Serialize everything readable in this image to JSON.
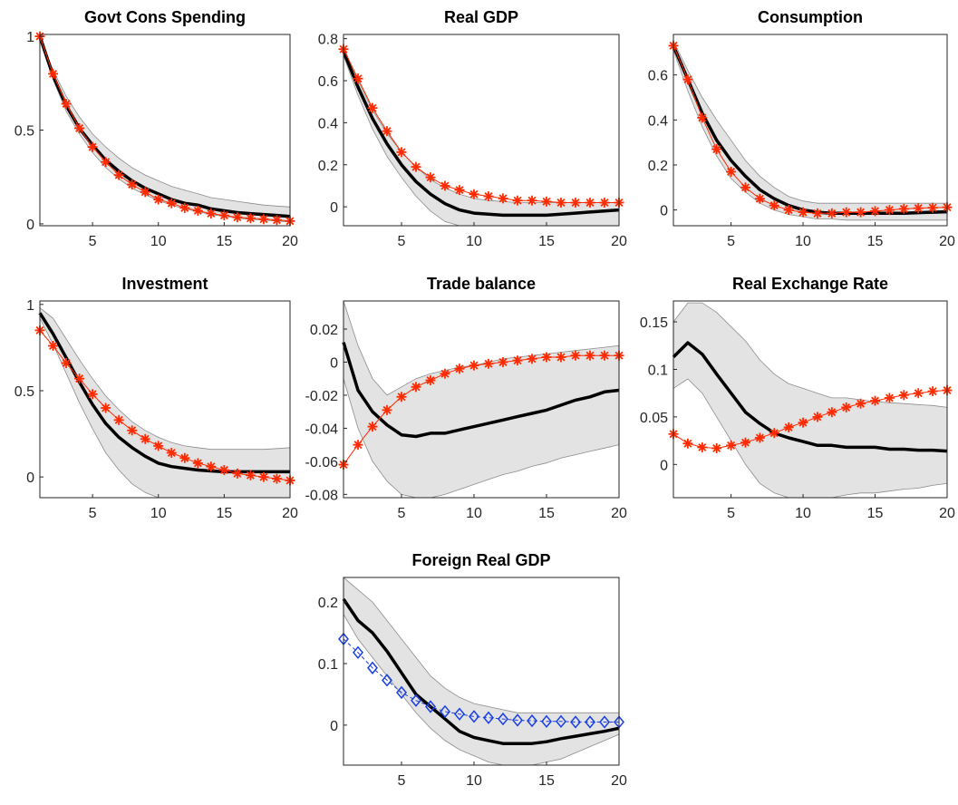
{
  "chart_data": [
    {
      "type": "line",
      "title": "Govt Cons Spending",
      "xlim": [
        1,
        20
      ],
      "ylim": [
        -0.01,
        1.01
      ],
      "xticks": [
        5,
        10,
        15,
        20
      ],
      "yticks": [
        0,
        0.5,
        1
      ],
      "ytick_labels": [
        "0",
        "0.5",
        "1"
      ],
      "x": [
        1,
        2,
        3,
        4,
        5,
        6,
        7,
        8,
        9,
        10,
        11,
        12,
        13,
        14,
        15,
        16,
        17,
        18,
        19,
        20
      ],
      "band_lower": [
        0.98,
        0.77,
        0.6,
        0.48,
        0.38,
        0.3,
        0.24,
        0.19,
        0.155,
        0.125,
        0.1,
        0.08,
        0.065,
        0.05,
        0.04,
        0.03,
        0.025,
        0.02,
        0.015,
        0.01
      ],
      "band_upper": [
        1.0,
        0.82,
        0.68,
        0.57,
        0.48,
        0.41,
        0.35,
        0.3,
        0.26,
        0.23,
        0.2,
        0.18,
        0.16,
        0.14,
        0.13,
        0.12,
        0.11,
        0.1,
        0.095,
        0.09
      ],
      "median": [
        1.0,
        0.79,
        0.63,
        0.51,
        0.42,
        0.34,
        0.28,
        0.23,
        0.19,
        0.16,
        0.13,
        0.11,
        0.1,
        0.08,
        0.07,
        0.06,
        0.055,
        0.05,
        0.045,
        0.04
      ],
      "markers": [
        1.0,
        0.8,
        0.64,
        0.51,
        0.41,
        0.33,
        0.26,
        0.21,
        0.17,
        0.13,
        0.11,
        0.085,
        0.07,
        0.055,
        0.045,
        0.035,
        0.03,
        0.025,
        0.02,
        0.015
      ],
      "marker_color": "#ff2a00"
    },
    {
      "type": "line",
      "title": "Real GDP",
      "xlim": [
        1,
        20
      ],
      "ylim": [
        -0.09,
        0.82
      ],
      "xticks": [
        5,
        10,
        15,
        20
      ],
      "yticks": [
        0,
        0.2,
        0.4,
        0.6,
        0.8
      ],
      "ytick_labels": [
        "0",
        "0.2",
        "0.4",
        "0.6",
        "0.8"
      ],
      "x": [
        1,
        2,
        3,
        4,
        5,
        6,
        7,
        8,
        9,
        10,
        11,
        12,
        13,
        14,
        15,
        16,
        17,
        18,
        19,
        20
      ],
      "band_lower": [
        0.72,
        0.53,
        0.37,
        0.24,
        0.14,
        0.05,
        -0.02,
        -0.07,
        -0.09,
        -0.09,
        -0.09,
        -0.09,
        -0.09,
        -0.09,
        -0.09,
        -0.09,
        -0.09,
        -0.09,
        -0.09,
        -0.09
      ],
      "band_upper": [
        0.76,
        0.6,
        0.46,
        0.35,
        0.26,
        0.19,
        0.13,
        0.09,
        0.06,
        0.04,
        0.03,
        0.025,
        0.02,
        0.02,
        0.02,
        0.02,
        0.02,
        0.02,
        0.02,
        0.02
      ],
      "median": [
        0.74,
        0.57,
        0.42,
        0.3,
        0.2,
        0.12,
        0.06,
        0.015,
        -0.015,
        -0.03,
        -0.035,
        -0.04,
        -0.04,
        -0.04,
        -0.04,
        -0.035,
        -0.03,
        -0.025,
        -0.02,
        -0.015
      ],
      "markers": [
        0.75,
        0.61,
        0.47,
        0.36,
        0.26,
        0.19,
        0.14,
        0.1,
        0.08,
        0.06,
        0.05,
        0.04,
        0.03,
        0.03,
        0.025,
        0.02,
        0.02,
        0.02,
        0.02,
        0.02
      ],
      "marker_color": "#ff2a00"
    },
    {
      "type": "line",
      "title": "Consumption",
      "xlim": [
        1,
        20
      ],
      "ylim": [
        -0.07,
        0.78
      ],
      "xticks": [
        5,
        10,
        15,
        20
      ],
      "yticks": [
        0,
        0.2,
        0.4,
        0.6
      ],
      "ytick_labels": [
        "0",
        "0.2",
        "0.4",
        "0.6"
      ],
      "x": [
        1,
        2,
        3,
        4,
        5,
        6,
        7,
        8,
        9,
        10,
        11,
        12,
        13,
        14,
        15,
        16,
        17,
        18,
        19,
        20
      ],
      "band_lower": [
        0.71,
        0.53,
        0.37,
        0.24,
        0.14,
        0.08,
        0.03,
        0.0,
        -0.02,
        -0.03,
        -0.04,
        -0.04,
        -0.045,
        -0.045,
        -0.045,
        -0.045,
        -0.045,
        -0.045,
        -0.045,
        -0.045
      ],
      "band_upper": [
        0.75,
        0.62,
        0.5,
        0.4,
        0.31,
        0.22,
        0.15,
        0.1,
        0.06,
        0.04,
        0.03,
        0.03,
        0.03,
        0.03,
        0.03,
        0.03,
        0.03,
        0.03,
        0.03,
        0.03
      ],
      "median": [
        0.73,
        0.58,
        0.43,
        0.31,
        0.22,
        0.15,
        0.09,
        0.05,
        0.02,
        0.0,
        -0.01,
        -0.015,
        -0.015,
        -0.015,
        -0.015,
        -0.015,
        -0.015,
        -0.012,
        -0.01,
        -0.008
      ],
      "markers": [
        0.73,
        0.58,
        0.41,
        0.27,
        0.17,
        0.1,
        0.05,
        0.02,
        0.0,
        -0.01,
        -0.015,
        -0.015,
        -0.01,
        -0.01,
        -0.005,
        0.0,
        0.005,
        0.008,
        0.01,
        0.012
      ],
      "marker_color": "#ff2a00"
    },
    {
      "type": "line",
      "title": "Investment",
      "xlim": [
        1,
        20
      ],
      "ylim": [
        -0.12,
        1.02
      ],
      "xticks": [
        5,
        10,
        15,
        20
      ],
      "yticks": [
        0,
        0.5,
        1
      ],
      "ytick_labels": [
        "0",
        "0.5",
        "1"
      ],
      "x": [
        1,
        2,
        3,
        4,
        5,
        6,
        7,
        8,
        9,
        10,
        11,
        12,
        13,
        14,
        15,
        16,
        17,
        18,
        19,
        20
      ],
      "band_lower": [
        0.92,
        0.77,
        0.6,
        0.43,
        0.28,
        0.14,
        0.04,
        -0.04,
        -0.09,
        -0.12,
        -0.12,
        -0.12,
        -0.12,
        -0.12,
        -0.12,
        -0.12,
        -0.12,
        -0.12,
        -0.12,
        -0.12
      ],
      "band_upper": [
        0.98,
        0.92,
        0.8,
        0.68,
        0.57,
        0.47,
        0.39,
        0.32,
        0.27,
        0.23,
        0.2,
        0.18,
        0.17,
        0.16,
        0.16,
        0.16,
        0.16,
        0.16,
        0.165,
        0.17
      ],
      "median": [
        0.95,
        0.83,
        0.69,
        0.55,
        0.42,
        0.31,
        0.23,
        0.17,
        0.12,
        0.08,
        0.06,
        0.05,
        0.04,
        0.035,
        0.03,
        0.03,
        0.03,
        0.03,
        0.03,
        0.03
      ],
      "markers": [
        0.85,
        0.76,
        0.66,
        0.57,
        0.48,
        0.4,
        0.33,
        0.27,
        0.22,
        0.18,
        0.14,
        0.11,
        0.08,
        0.06,
        0.04,
        0.02,
        0.01,
        0.0,
        -0.01,
        -0.02
      ],
      "marker_color": "#ff2a00"
    },
    {
      "type": "line",
      "title": "Trade balance",
      "xlim": [
        1,
        20
      ],
      "ylim": [
        -0.082,
        0.037
      ],
      "xticks": [
        5,
        10,
        15,
        20
      ],
      "yticks": [
        -0.08,
        -0.06,
        -0.04,
        -0.02,
        0,
        0.02
      ],
      "ytick_labels": [
        "-0.08",
        "-0.06",
        "-0.04",
        "-0.02",
        "0",
        "0.02"
      ],
      "x": [
        1,
        2,
        3,
        4,
        5,
        6,
        7,
        8,
        9,
        10,
        11,
        12,
        13,
        14,
        15,
        16,
        17,
        18,
        19,
        20
      ],
      "band_lower": [
        -0.01,
        -0.04,
        -0.06,
        -0.072,
        -0.08,
        -0.082,
        -0.082,
        -0.08,
        -0.077,
        -0.074,
        -0.071,
        -0.068,
        -0.066,
        -0.063,
        -0.061,
        -0.058,
        -0.056,
        -0.054,
        -0.052,
        -0.05
      ],
      "band_upper": [
        0.037,
        0.01,
        -0.01,
        -0.02,
        -0.015,
        -0.01,
        -0.007,
        -0.005,
        -0.003,
        -0.002,
        0.0,
        0.002,
        0.003,
        0.004,
        0.005,
        0.006,
        0.007,
        0.008,
        0.009,
        0.01
      ],
      "median": [
        0.012,
        -0.017,
        -0.03,
        -0.038,
        -0.044,
        -0.045,
        -0.043,
        -0.043,
        -0.041,
        -0.039,
        -0.037,
        -0.035,
        -0.033,
        -0.031,
        -0.029,
        -0.026,
        -0.023,
        -0.021,
        -0.018,
        -0.017
      ],
      "markers": [
        -0.062,
        -0.05,
        -0.039,
        -0.029,
        -0.021,
        -0.015,
        -0.011,
        -0.007,
        -0.004,
        -0.002,
        -0.001,
        0.0,
        0.001,
        0.002,
        0.003,
        0.003,
        0.004,
        0.004,
        0.004,
        0.004
      ],
      "marker_color": "#ff2a00"
    },
    {
      "type": "line",
      "title": "Real Exchange Rate",
      "xlim": [
        1,
        20
      ],
      "ylim": [
        -0.035,
        0.172
      ],
      "xticks": [
        5,
        10,
        15,
        20
      ],
      "yticks": [
        0,
        0.05,
        0.1,
        0.15
      ],
      "ytick_labels": [
        "0",
        "0.05",
        "0.1",
        "0.15"
      ],
      "x": [
        1,
        2,
        3,
        4,
        5,
        6,
        7,
        8,
        9,
        10,
        11,
        12,
        13,
        14,
        15,
        16,
        17,
        18,
        19,
        20
      ],
      "band_lower": [
        0.08,
        0.09,
        0.075,
        0.05,
        0.025,
        0.0,
        -0.02,
        -0.03,
        -0.035,
        -0.035,
        -0.035,
        -0.035,
        -0.032,
        -0.03,
        -0.03,
        -0.028,
        -0.026,
        -0.025,
        -0.022,
        -0.02
      ],
      "band_upper": [
        0.15,
        0.17,
        0.17,
        0.16,
        0.145,
        0.13,
        0.11,
        0.095,
        0.085,
        0.08,
        0.075,
        0.07,
        0.07,
        0.068,
        0.066,
        0.065,
        0.064,
        0.063,
        0.062,
        0.06
      ],
      "median": [
        0.113,
        0.128,
        0.116,
        0.095,
        0.075,
        0.055,
        0.043,
        0.033,
        0.028,
        0.024,
        0.02,
        0.02,
        0.018,
        0.018,
        0.018,
        0.016,
        0.016,
        0.015,
        0.015,
        0.014
      ],
      "markers": [
        0.032,
        0.022,
        0.018,
        0.017,
        0.02,
        0.023,
        0.028,
        0.033,
        0.039,
        0.044,
        0.05,
        0.055,
        0.06,
        0.064,
        0.067,
        0.07,
        0.073,
        0.075,
        0.077,
        0.078
      ],
      "marker_color": "#ff2a00"
    },
    {
      "type": "line",
      "title": "Foreign Real GDP",
      "xlim": [
        1,
        20
      ],
      "ylim": [
        -0.065,
        0.24
      ],
      "xticks": [
        5,
        10,
        15,
        20
      ],
      "yticks": [
        0,
        0.1,
        0.2
      ],
      "ytick_labels": [
        "0",
        "0.1",
        "0.2"
      ],
      "x": [
        1,
        2,
        3,
        4,
        5,
        6,
        7,
        8,
        9,
        10,
        11,
        12,
        13,
        14,
        15,
        16,
        17,
        18,
        19,
        20
      ],
      "band_lower": [
        0.18,
        0.14,
        0.11,
        0.08,
        0.05,
        0.02,
        -0.005,
        -0.025,
        -0.04,
        -0.05,
        -0.06,
        -0.065,
        -0.065,
        -0.065,
        -0.06,
        -0.055,
        -0.045,
        -0.035,
        -0.025,
        -0.015
      ],
      "band_upper": [
        0.24,
        0.22,
        0.2,
        0.17,
        0.14,
        0.11,
        0.08,
        0.06,
        0.045,
        0.035,
        0.03,
        0.025,
        0.02,
        0.02,
        0.02,
        0.02,
        0.02,
        0.02,
        0.02,
        0.02
      ],
      "median": [
        0.205,
        0.17,
        0.15,
        0.12,
        0.085,
        0.05,
        0.03,
        0.01,
        -0.01,
        -0.02,
        -0.025,
        -0.03,
        -0.03,
        -0.03,
        -0.027,
        -0.022,
        -0.018,
        -0.014,
        -0.01,
        -0.005
      ],
      "markers": [
        0.14,
        0.118,
        0.093,
        0.073,
        0.053,
        0.04,
        0.03,
        0.022,
        0.018,
        0.014,
        0.012,
        0.01,
        0.008,
        0.007,
        0.006,
        0.006,
        0.005,
        0.005,
        0.005,
        0.005
      ],
      "marker_color": "#1a3fe0",
      "marker_shape": "diamond"
    }
  ]
}
